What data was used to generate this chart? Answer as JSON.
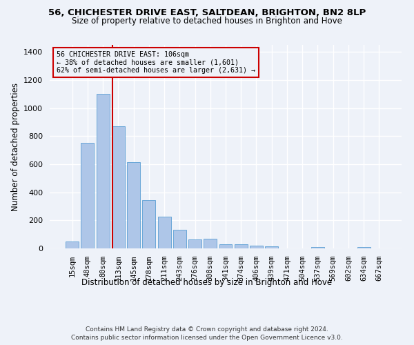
{
  "title1": "56, CHICHESTER DRIVE EAST, SALTDEAN, BRIGHTON, BN2 8LP",
  "title2": "Size of property relative to detached houses in Brighton and Hove",
  "xlabel": "Distribution of detached houses by size in Brighton and Hove",
  "ylabel": "Number of detached properties",
  "footnote1": "Contains HM Land Registry data © Crown copyright and database right 2024.",
  "footnote2": "Contains public sector information licensed under the Open Government Licence v3.0.",
  "bar_labels": [
    "15sqm",
    "48sqm",
    "80sqm",
    "113sqm",
    "145sqm",
    "178sqm",
    "211sqm",
    "243sqm",
    "276sqm",
    "308sqm",
    "341sqm",
    "374sqm",
    "406sqm",
    "439sqm",
    "471sqm",
    "504sqm",
    "537sqm",
    "569sqm",
    "602sqm",
    "634sqm",
    "667sqm"
  ],
  "bar_values": [
    50,
    750,
    1100,
    870,
    615,
    345,
    225,
    135,
    65,
    70,
    30,
    30,
    22,
    13,
    0,
    0,
    12,
    0,
    0,
    12,
    0
  ],
  "bar_color": "#aec6e8",
  "bar_edge_color": "#5a9fd4",
  "ylim": [
    0,
    1450
  ],
  "yticks": [
    0,
    200,
    400,
    600,
    800,
    1000,
    1200,
    1400
  ],
  "vline_x_index": 2.62,
  "vline_color": "#cc0000",
  "annotation_title": "56 CHICHESTER DRIVE EAST: 106sqm",
  "annotation_line1": "← 38% of detached houses are smaller (1,601)",
  "annotation_line2": "62% of semi-detached houses are larger (2,631) →",
  "annotation_box_color": "#cc0000",
  "bg_color": "#eef2f9",
  "grid_color": "#ffffff"
}
